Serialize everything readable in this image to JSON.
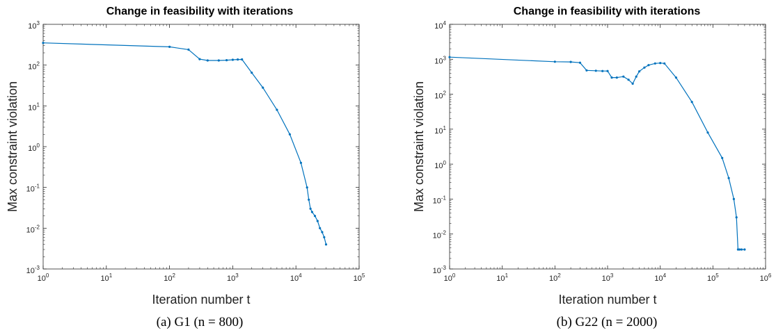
{
  "chart_data": [
    {
      "type": "line",
      "title": "Change in feasibility with iterations",
      "xlabel": "Iteration number t",
      "ylabel": "Max constraint violation",
      "xscale": "log",
      "yscale": "log",
      "xlim": [
        1,
        100000
      ],
      "ylim": [
        0.001,
        1000
      ],
      "xticks": [
        "10^0",
        "10^1",
        "10^2",
        "10^3",
        "10^4",
        "10^5"
      ],
      "yticks": [
        "10^-3",
        "10^-2",
        "10^-1",
        "10^0",
        "10^1",
        "10^2",
        "10^3"
      ],
      "grid": false,
      "caption": "(a) G1 (n = 800)",
      "series": [
        {
          "color": "#0072BD",
          "x": [
            1,
            100,
            200,
            300,
            400,
            600,
            800,
            1000,
            1200,
            1400,
            2000,
            3000,
            5000,
            8000,
            12000,
            15000,
            16000,
            17000,
            18000,
            20000,
            22000,
            24000,
            26000,
            28000,
            30000
          ],
          "y": [
            350,
            280,
            240,
            140,
            130,
            130,
            132,
            135,
            137,
            138,
            65,
            28,
            8,
            2,
            0.4,
            0.1,
            0.05,
            0.03,
            0.025,
            0.02,
            0.015,
            0.01,
            0.008,
            0.006,
            0.004
          ]
        }
      ]
    },
    {
      "type": "line",
      "title": "Change in feasibility with iterations",
      "xlabel": "Iteration number t",
      "ylabel": "Max constraint violation",
      "xscale": "log",
      "yscale": "log",
      "xlim": [
        1,
        1000000
      ],
      "ylim": [
        0.001,
        10000
      ],
      "xticks": [
        "10^0",
        "10^1",
        "10^2",
        "10^3",
        "10^4",
        "10^5",
        "10^6"
      ],
      "yticks": [
        "10^-3",
        "10^-2",
        "10^-1",
        "10^0",
        "10^1",
        "10^2",
        "10^3",
        "10^4"
      ],
      "grid": false,
      "caption": "(b) G22 (n = 2000)",
      "series": [
        {
          "color": "#0072BD",
          "x": [
            1,
            100,
            200,
            300,
            400,
            600,
            800,
            1000,
            1200,
            1500,
            2000,
            2500,
            3000,
            3500,
            4000,
            5000,
            6000,
            8000,
            10000,
            12000,
            20000,
            40000,
            80000,
            150000,
            200000,
            250000,
            280000,
            300000,
            320000,
            350000,
            400000
          ],
          "y": [
            1150,
            850,
            840,
            800,
            480,
            470,
            460,
            460,
            300,
            300,
            320,
            260,
            200,
            320,
            450,
            580,
            680,
            760,
            780,
            760,
            300,
            60,
            8,
            1.5,
            0.4,
            0.1,
            0.03,
            0.0036,
            0.0036,
            0.0036,
            0.0036
          ]
        }
      ]
    }
  ]
}
